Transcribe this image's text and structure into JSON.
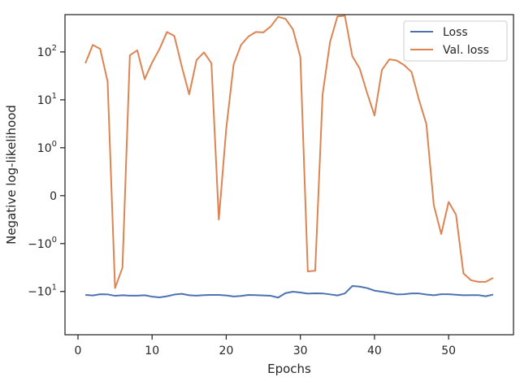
{
  "chart_data": {
    "type": "line",
    "title": "",
    "xlabel": "Epochs",
    "ylabel": "Negative log-likelihood",
    "xlim": [
      -1.75,
      58.75
    ],
    "xticks": [
      0,
      10,
      20,
      30,
      40,
      50
    ],
    "yscale": "symlog",
    "ylim": [
      -80,
      600
    ],
    "yticks": [
      {
        "value": 100,
        "label_base": "10",
        "label_exp": "2"
      },
      {
        "value": 10,
        "label_base": "10",
        "label_exp": "1"
      },
      {
        "value": 1,
        "label_base": "10",
        "label_exp": "0"
      },
      {
        "value": 0,
        "label_base": "0",
        "label_exp": ""
      },
      {
        "value": -1,
        "label_base": "−10",
        "label_exp": "0"
      },
      {
        "value": -10,
        "label_base": "−10",
        "label_exp": "1"
      }
    ],
    "grid": false,
    "legend_position": "top-right",
    "x": [
      1,
      2,
      3,
      4,
      5,
      6,
      7,
      8,
      9,
      10,
      11,
      12,
      13,
      14,
      15,
      16,
      17,
      18,
      19,
      20,
      21,
      22,
      23,
      24,
      25,
      26,
      27,
      28,
      29,
      30,
      31,
      32,
      33,
      34,
      35,
      36,
      37,
      38,
      39,
      40,
      41,
      42,
      43,
      44,
      45,
      46,
      47,
      48,
      49,
      50,
      51,
      52,
      53,
      54,
      55,
      56
    ],
    "series": [
      {
        "name": "Loss",
        "color": "#4c72b0",
        "values": [
          -11.8,
          -12.1,
          -11.4,
          -11.5,
          -12.3,
          -12.0,
          -12.2,
          -12.2,
          -12.0,
          -12.8,
          -13.3,
          -12.6,
          -11.6,
          -11.2,
          -12.0,
          -12.2,
          -11.9,
          -11.8,
          -11.8,
          -12.1,
          -12.7,
          -12.4,
          -11.8,
          -11.9,
          -12.1,
          -12.3,
          -13.4,
          -10.8,
          -10.1,
          -10.5,
          -11.1,
          -10.9,
          -11.0,
          -11.5,
          -12.1,
          -11.0,
          -7.7,
          -7.9,
          -8.5,
          -9.6,
          -10.1,
          -10.7,
          -11.5,
          -11.4,
          -11.0,
          -11.0,
          -11.6,
          -12.0,
          -11.4,
          -11.4,
          -11.7,
          -12.0,
          -11.9,
          -11.9,
          -12.6,
          -11.6
        ]
      },
      {
        "name": "Val. loss",
        "color": "#dd8452",
        "values": [
          58,
          140,
          115,
          24,
          -8.5,
          -3.2,
          85,
          108,
          27,
          60,
          115,
          260,
          215,
          50,
          13,
          68,
          98,
          58,
          -0.5,
          2.5,
          55,
          140,
          210,
          260,
          255,
          340,
          540,
          490,
          295,
          78,
          -3.8,
          -3.7,
          13,
          160,
          550,
          570,
          82,
          45,
          14,
          4.7,
          42,
          70,
          66,
          53,
          38,
          10,
          3.1,
          -0.2,
          -0.8,
          -0.13,
          -0.4,
          -4.2,
          -5.8,
          -6.3,
          -6.3,
          -5.2
        ]
      }
    ]
  }
}
